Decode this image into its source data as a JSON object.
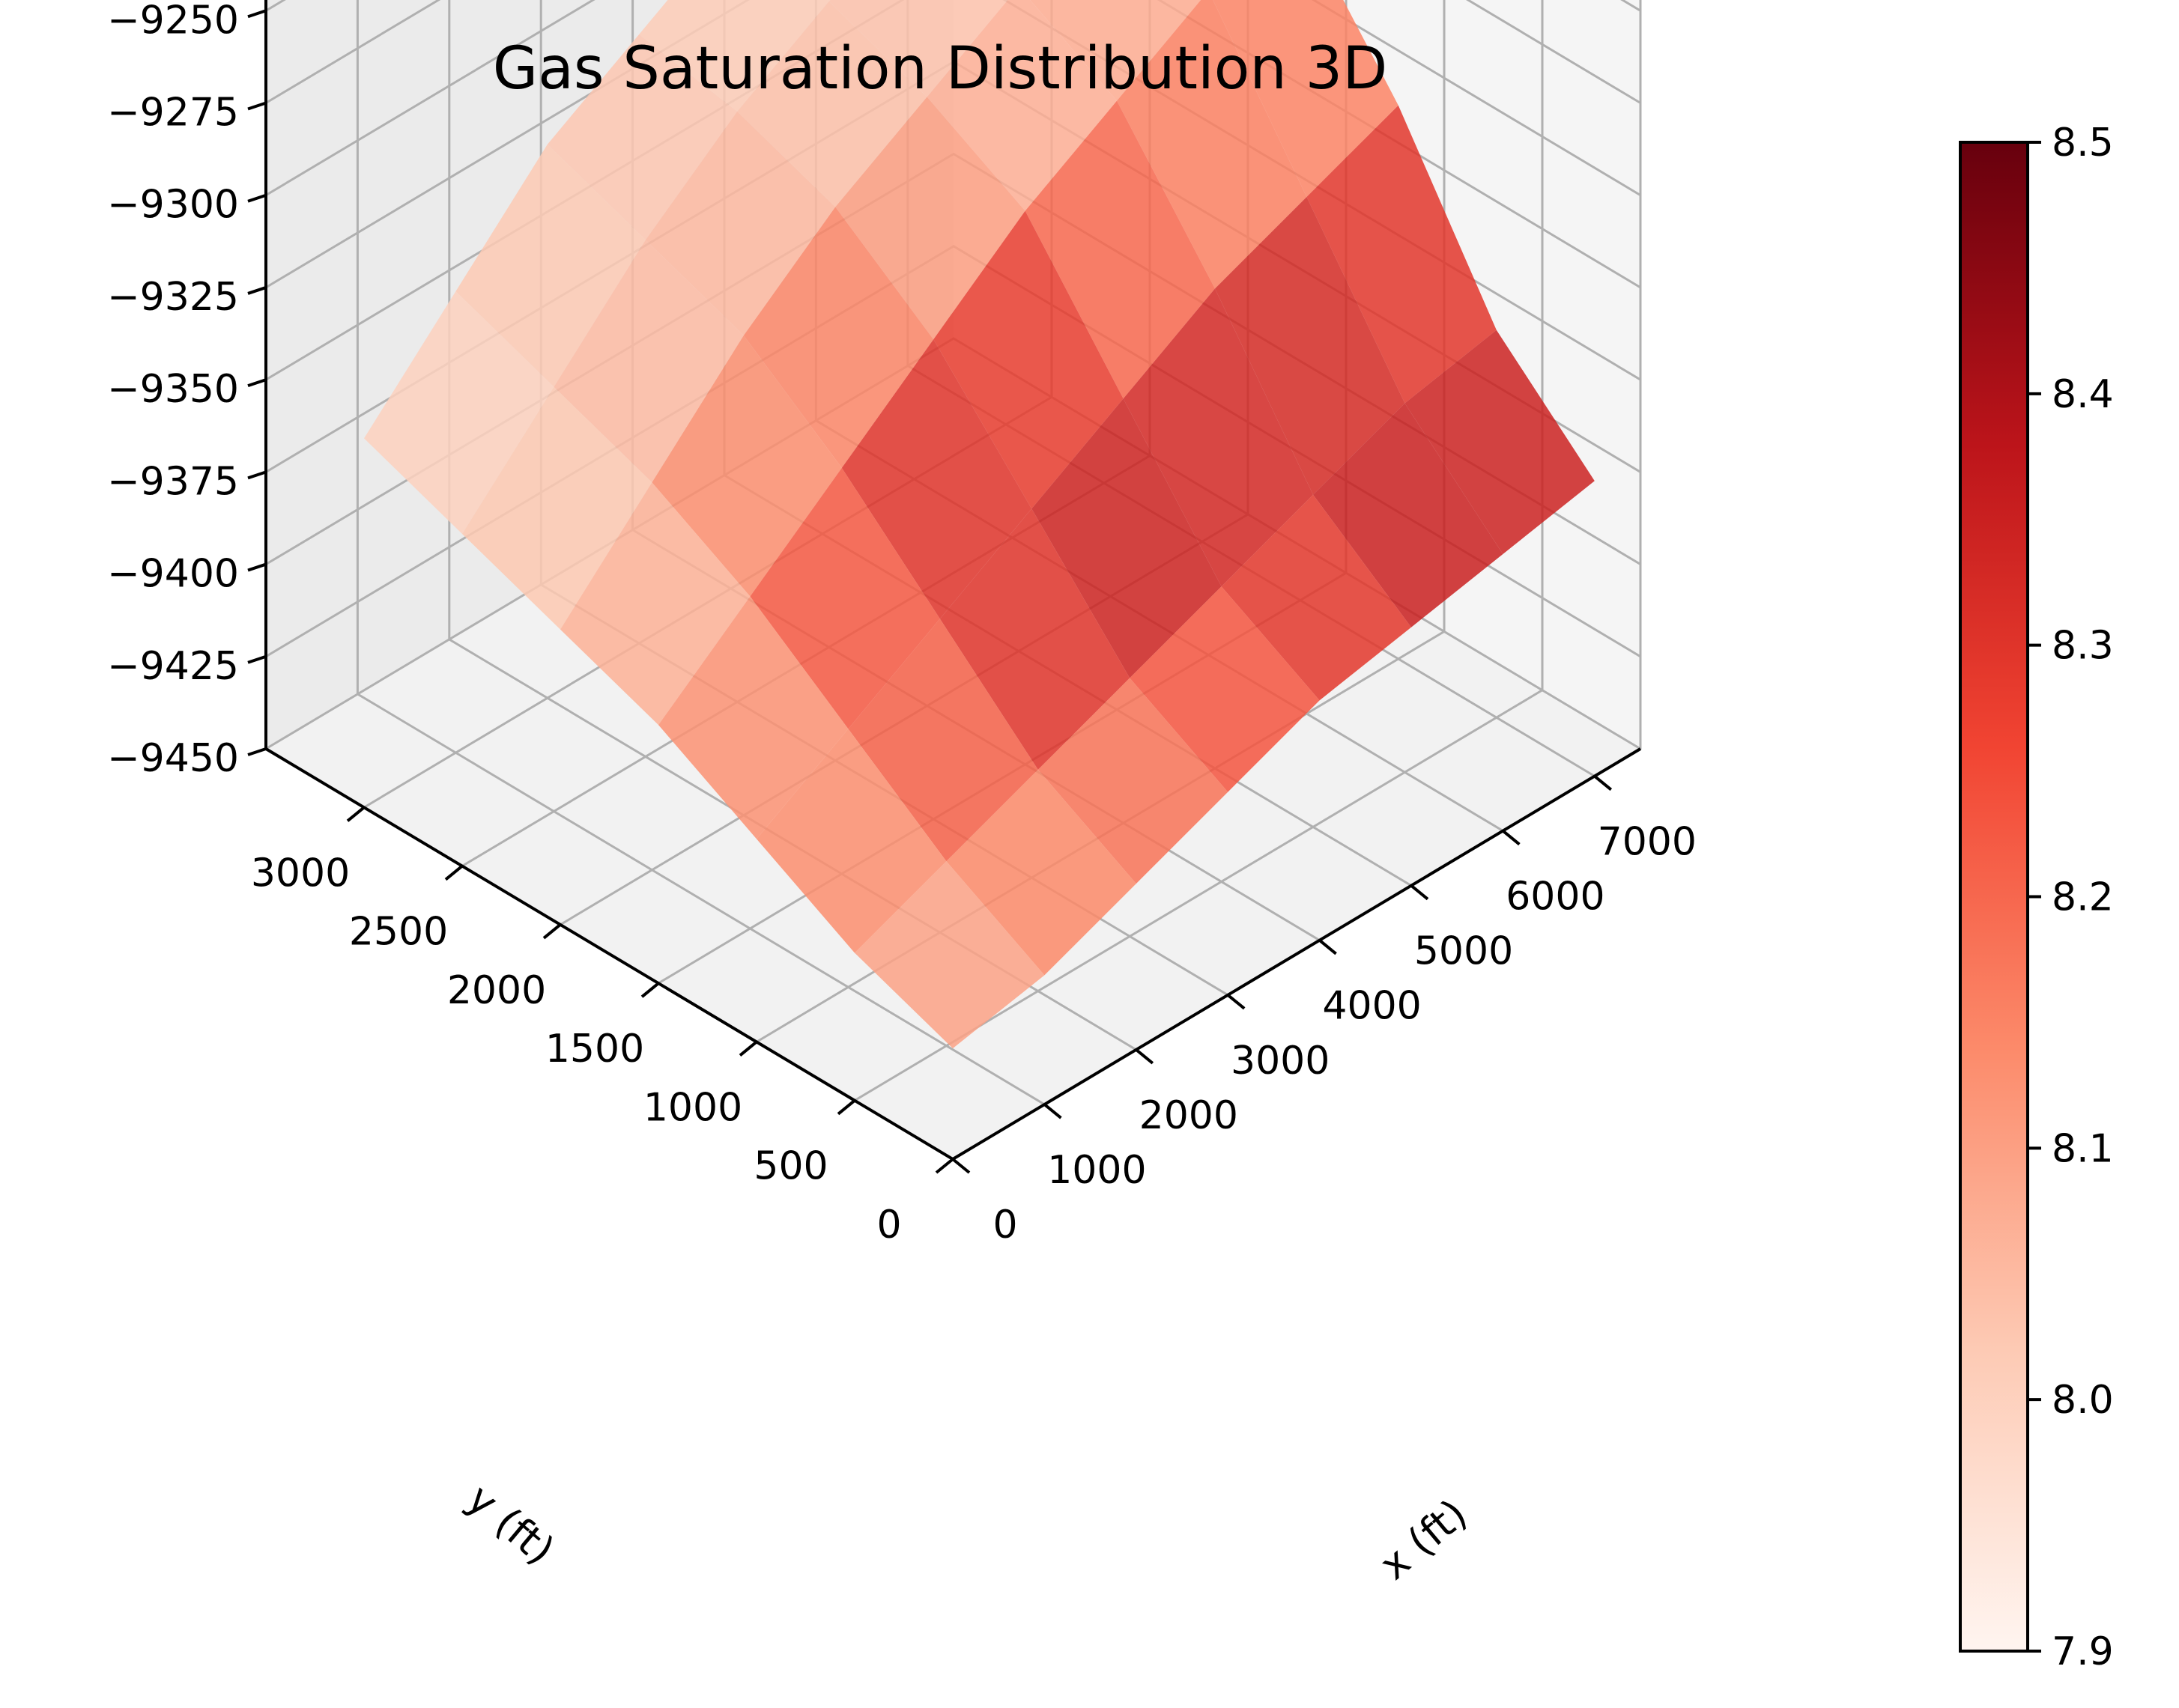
{
  "chart_data": {
    "type": "surface3d",
    "title": "Gas Saturation Distribution 3D",
    "xlabel": "x (ft)",
    "ylabel": "y (ft)",
    "zlabel": "",
    "x_ticks": [
      "0",
      "1000",
      "2000",
      "3000",
      "4000",
      "5000",
      "6000",
      "7000"
    ],
    "y_ticks": [
      "0",
      "500",
      "1000",
      "1500",
      "2000",
      "2500",
      "3000"
    ],
    "z_ticks": [
      "−9450",
      "−9425",
      "−9400",
      "−9375",
      "−9350",
      "−9325",
      "−9300",
      "−9275",
      "−9250"
    ],
    "xlim": [
      0,
      7500
    ],
    "ylim": [
      0,
      3500
    ],
    "zlim": [
      -9450,
      -9240
    ],
    "colormap": "Reds",
    "colorbar": {
      "min": 7.9,
      "max": 8.5,
      "ticks": [
        "7.9",
        "8.0",
        "8.1",
        "8.2",
        "8.3",
        "8.4",
        "8.5"
      ]
    },
    "grid": true,
    "surface_x": [
      0,
      1000,
      2000,
      3000,
      4000,
      5000,
      6000,
      7000
    ],
    "surface_y": [
      0,
      500,
      1000,
      1500,
      2000,
      2500,
      3000
    ],
    "surface_z": [
      [
        -9420,
        -9415,
        -9405,
        -9395,
        -9385,
        -9380,
        -9375,
        -9370
      ],
      [
        -9410,
        -9400,
        -9390,
        -9380,
        -9370,
        -9360,
        -9350,
        -9345
      ],
      [
        -9395,
        -9380,
        -9365,
        -9350,
        -9335,
        -9320,
        -9310,
        -9300
      ],
      [
        -9380,
        -9360,
        -9340,
        -9320,
        -9300,
        -9285,
        -9270,
        -9265
      ],
      [
        -9370,
        -9345,
        -9320,
        -9300,
        -9285,
        -9270,
        -9260,
        -9255
      ],
      [
        -9360,
        -9335,
        -9310,
        -9290,
        -9275,
        -9265,
        -9255,
        -9250
      ],
      [
        -9350,
        -9325,
        -9300,
        -9285,
        -9270,
        -9260,
        -9255,
        -9250
      ]
    ],
    "surface_saturation": [
      [
        8.05,
        8.1,
        8.12,
        8.15,
        8.2,
        8.25,
        8.3,
        8.28
      ],
      [
        8.08,
        8.15,
        8.2,
        8.25,
        8.32,
        8.4,
        8.45,
        8.35
      ],
      [
        8.1,
        8.2,
        8.3,
        8.45,
        8.35,
        8.25,
        8.2,
        8.18
      ],
      [
        8.05,
        8.15,
        8.25,
        8.2,
        8.12,
        8.08,
        8.1,
        8.12
      ],
      [
        8.02,
        8.05,
        8.08,
        8.06,
        8.04,
        8.05,
        8.08,
        8.1
      ],
      [
        8.0,
        8.02,
        8.04,
        8.03,
        8.02,
        8.03,
        8.05,
        8.06
      ],
      [
        7.98,
        8.0,
        8.02,
        8.01,
        8.0,
        8.01,
        8.03,
        8.04
      ]
    ]
  }
}
